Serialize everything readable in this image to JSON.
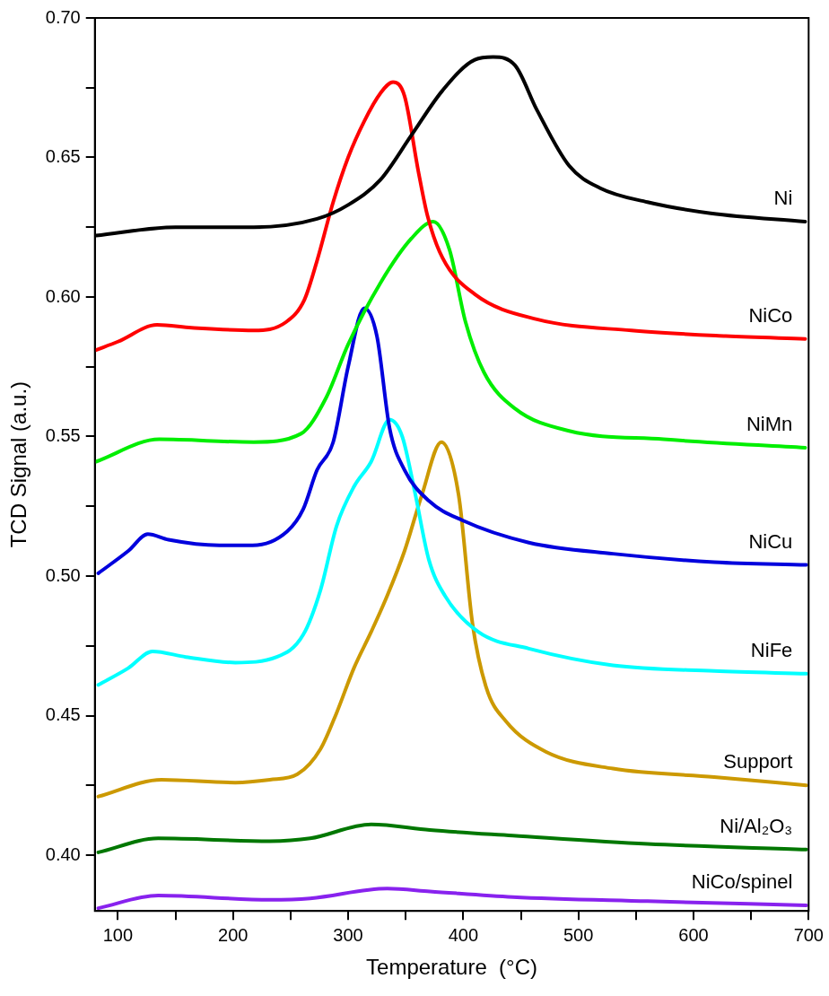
{
  "chart_data": {
    "type": "line",
    "xlabel": "Temperature  (°C)",
    "ylabel": "TCD Signal (a.u.)",
    "xlim": [
      80,
      700
    ],
    "xticks": [
      100,
      {
        "value": 150,
        "label": null
      },
      200,
      {
        "value": 250,
        "label": null
      },
      300,
      {
        "value": 350,
        "label": null
      },
      400,
      {
        "value": 450,
        "label": null
      },
      500,
      {
        "value": 550,
        "label": null
      },
      600,
      {
        "value": 650,
        "label": null
      },
      700
    ],
    "ylim": [
      0.38,
      0.7
    ],
    "yticks": [
      {
        "value": 0.4,
        "label": "0.40"
      },
      {
        "value": 0.425,
        "label": null
      },
      {
        "value": 0.45,
        "label": "0.45"
      },
      {
        "value": 0.475,
        "label": null
      },
      {
        "value": 0.5,
        "label": "0.50"
      },
      {
        "value": 0.525,
        "label": null
      },
      {
        "value": 0.55,
        "label": "0.55"
      },
      {
        "value": 0.575,
        "label": null
      },
      {
        "value": 0.6,
        "label": "0.60"
      },
      {
        "value": 0.625,
        "label": null
      },
      {
        "value": 0.65,
        "label": "0.65"
      },
      {
        "value": 0.675,
        "label": null
      },
      {
        "value": 0.7,
        "label": "0.70"
      }
    ],
    "grid": false,
    "legend": false,
    "marker": "none",
    "line_style": "solid",
    "series": [
      {
        "name": "Ni",
        "color": "#000000",
        "x": [
          81,
          150,
          218,
          273,
          300,
          328,
          355,
          382,
          410,
          426,
          445,
          464,
          492,
          519,
          560,
          615,
          697
        ],
        "values": [
          0.622,
          0.625,
          0.625,
          0.628,
          0.633,
          0.642,
          0.658,
          0.674,
          0.685,
          0.686,
          0.683,
          0.667,
          0.647,
          0.639,
          0.634,
          0.63,
          0.627
        ]
      },
      {
        "name": "NiCo",
        "color": "#ff0000",
        "x": [
          81,
          100,
          134,
          164,
          218,
          246,
          262,
          273,
          287,
          300,
          314,
          328,
          339,
          349,
          361,
          369,
          382,
          410,
          464,
          546,
          628,
          697
        ],
        "values": [
          0.581,
          0.584,
          0.59,
          0.589,
          0.588,
          0.591,
          0.599,
          0.613,
          0.634,
          0.65,
          0.663,
          0.673,
          0.677,
          0.672,
          0.645,
          0.629,
          0.614,
          0.601,
          0.592,
          0.588,
          0.586,
          0.585
        ]
      },
      {
        "name": "NiMn",
        "color": "#00ee00",
        "x": [
          81,
          136,
          218,
          259,
          281,
          300,
          328,
          355,
          374,
          388,
          402,
          418,
          445,
          492,
          574,
          697
        ],
        "values": [
          0.541,
          0.549,
          0.548,
          0.551,
          0.564,
          0.583,
          0.605,
          0.621,
          0.627,
          0.617,
          0.591,
          0.573,
          0.56,
          0.552,
          0.549,
          0.546
        ]
      },
      {
        "name": "NiCu",
        "color": "#0000dd",
        "x": [
          83,
          109,
          126,
          144,
          188,
          217,
          247,
          261,
          273,
          287,
          300,
          314,
          325,
          336,
          349,
          370,
          399,
          457,
          530,
          618,
          698
        ],
        "values": [
          0.501,
          0.509,
          0.515,
          0.513,
          0.511,
          0.511,
          0.516,
          0.524,
          0.538,
          0.548,
          0.575,
          0.596,
          0.586,
          0.553,
          0.538,
          0.527,
          0.52,
          0.512,
          0.508,
          0.505,
          0.504
        ]
      },
      {
        "name": "NiFe",
        "color": "#00ffff",
        "x": [
          83,
          109,
          130,
          159,
          202,
          238,
          261,
          276,
          290,
          305,
          320,
          336,
          347,
          358,
          370,
          384,
          413,
          457,
          530,
          618,
          698
        ],
        "values": [
          0.461,
          0.467,
          0.473,
          0.471,
          0.469,
          0.471,
          0.479,
          0.495,
          0.518,
          0.532,
          0.541,
          0.556,
          0.55,
          0.53,
          0.506,
          0.493,
          0.48,
          0.474,
          0.468,
          0.466,
          0.465
        ]
      },
      {
        "name": "Support",
        "color": "#cc9900",
        "x": [
          83,
          138,
          202,
          232,
          256,
          276,
          290,
          305,
          320,
          334,
          349,
          364,
          381,
          396,
          408,
          420,
          437,
          472,
          530,
          618,
          698
        ],
        "values": [
          0.421,
          0.427,
          0.426,
          0.427,
          0.429,
          0.438,
          0.451,
          0.467,
          0.48,
          0.493,
          0.509,
          0.529,
          0.548,
          0.529,
          0.483,
          0.46,
          0.448,
          0.437,
          0.431,
          0.428,
          0.425
        ]
      },
      {
        "name": "Ni/Al₂O₃",
        "color": "#007700",
        "x": [
          83,
          135,
          232,
          267,
          320,
          371,
          443,
          560,
          698
        ],
        "values": [
          0.401,
          0.406,
          0.405,
          0.406,
          0.411,
          0.409,
          0.407,
          0.404,
          0.402
        ]
      },
      {
        "name": "NiCo/spinel",
        "color": "#8822ee",
        "x": [
          83,
          135,
          232,
          267,
          334,
          371,
          443,
          560,
          698
        ],
        "values": [
          0.381,
          0.3855,
          0.384,
          0.3845,
          0.388,
          0.387,
          0.385,
          0.3835,
          0.382
        ]
      }
    ]
  }
}
